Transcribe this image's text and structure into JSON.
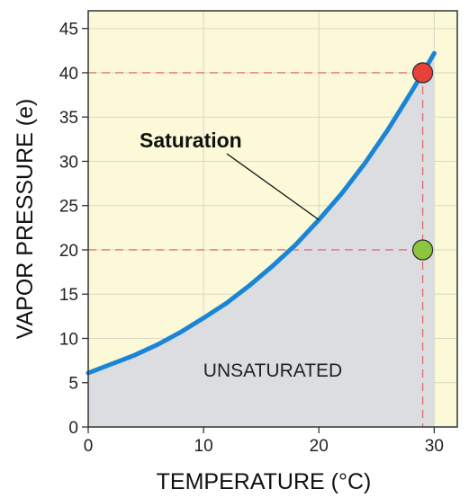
{
  "chart_data": {
    "type": "line",
    "title": "",
    "xlabel": "TEMPERATURE (°C)",
    "ylabel": "VAPOR PRESSURE (e)",
    "xlim": [
      0,
      32
    ],
    "ylim": [
      0,
      47
    ],
    "x_ticks": [
      0,
      10,
      20,
      30
    ],
    "y_ticks": [
      0,
      5,
      10,
      15,
      20,
      25,
      30,
      35,
      40,
      45
    ],
    "grid": true,
    "series": [
      {
        "name": "Saturation",
        "x": [
          0,
          2,
          4,
          6,
          8,
          10,
          12,
          14,
          16,
          18,
          20,
          22,
          24,
          26,
          28,
          29,
          30
        ],
        "y": [
          6.1,
          7.1,
          8.1,
          9.3,
          10.7,
          12.3,
          14.0,
          16.0,
          18.2,
          20.6,
          23.4,
          26.4,
          29.8,
          33.6,
          37.8,
          40.0,
          42.2
        ]
      }
    ],
    "points": [
      {
        "x": 29,
        "y": 40,
        "color": "#e8413a"
      },
      {
        "x": 29,
        "y": 20,
        "color": "#8cc63f"
      }
    ],
    "annotations": {
      "curve_label": {
        "text": "Saturation",
        "x": 20,
        "y": 23.4
      },
      "region_label": {
        "text": "UNSATURATED",
        "x": 16,
        "y": 6.5
      }
    },
    "colors": {
      "background": "#fbf9d7",
      "under_curve": "#dcdde0",
      "curve": "#1a85d6",
      "grid": "#d9d7c4",
      "guide": "#e07373"
    }
  }
}
